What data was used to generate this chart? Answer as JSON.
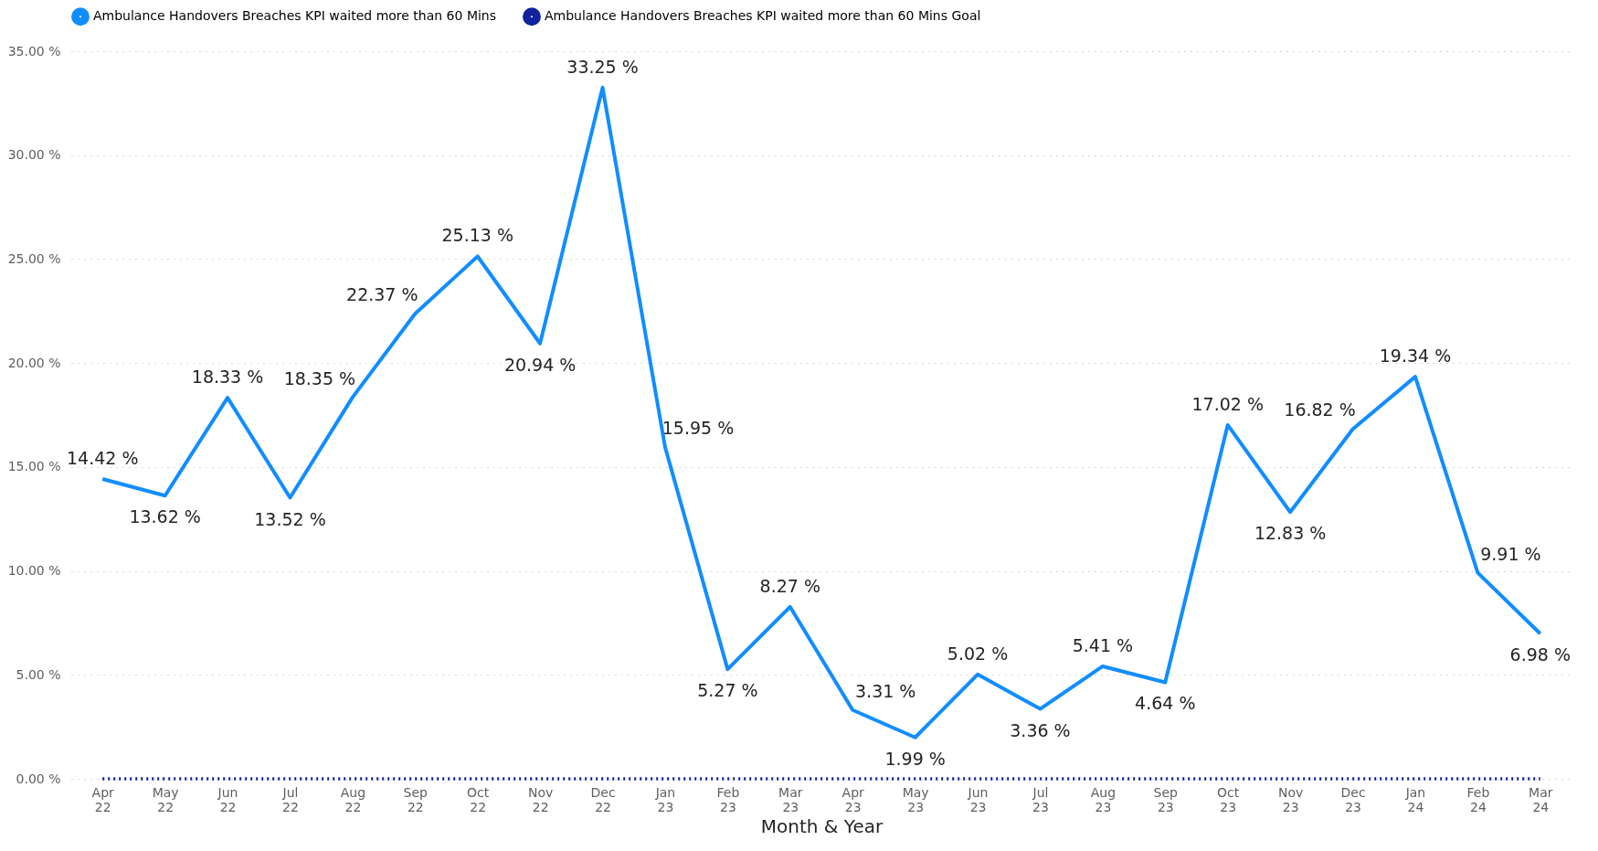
{
  "chart_data": {
    "type": "line",
    "xlabel": "Month & Year",
    "categories": [
      "Apr 22",
      "May 22",
      "Jun 22",
      "Jul 22",
      "Aug 22",
      "Sep 22",
      "Oct 22",
      "Nov 22",
      "Dec 22",
      "Jan 23",
      "Feb 23",
      "Mar 23",
      "Apr 23",
      "May 23",
      "Jun 23",
      "Jul 23",
      "Aug 23",
      "Sep 23",
      "Oct 23",
      "Nov 23",
      "Dec 23",
      "Jan 24",
      "Feb 24",
      "Mar 24"
    ],
    "series": [
      {
        "name": "Ambulance Handovers Breaches KPI waited more than 60 Mins",
        "color": "#118dff",
        "line_style": "solid",
        "values": [
          14.42,
          13.62,
          18.33,
          13.52,
          18.35,
          22.37,
          25.13,
          20.94,
          33.25,
          15.95,
          5.27,
          8.27,
          3.31,
          1.99,
          5.02,
          3.36,
          5.41,
          4.64,
          17.02,
          12.83,
          16.82,
          19.34,
          9.91,
          6.98
        ],
        "value_labels": [
          "14.42 %",
          "13.62 %",
          "18.33 %",
          "13.52 %",
          "18.35 %",
          "22.37 %",
          "25.13 %",
          "20.94 %",
          "33.25 %",
          "15.95 %",
          "5.27 %",
          "8.27 %",
          "3.31 %",
          "1.99 %",
          "5.02 %",
          "3.36 %",
          "5.41 %",
          "4.64 %",
          "17.02 %",
          "12.83 %",
          "16.82 %",
          "19.34 %",
          "9.91 %",
          "6.98 %"
        ]
      },
      {
        "name": "Ambulance Handovers Breaches KPI waited more than 60 Mins Goal",
        "color": "#12239e",
        "line_style": "dotted",
        "values": [
          0,
          0,
          0,
          0,
          0,
          0,
          0,
          0,
          0,
          0,
          0,
          0,
          0,
          0,
          0,
          0,
          0,
          0,
          0,
          0,
          0,
          0,
          0,
          0
        ]
      }
    ],
    "ylim": [
      0,
      35
    ],
    "yticks": [
      {
        "value": 0,
        "label": "0.00 %"
      },
      {
        "value": 5,
        "label": "5.00 %"
      },
      {
        "value": 10,
        "label": "10.00 %"
      },
      {
        "value": 15,
        "label": "15.00 %"
      },
      {
        "value": 20,
        "label": "20.00 %"
      },
      {
        "value": 25,
        "label": "25.00 %"
      },
      {
        "value": 30,
        "label": "30.00 %"
      },
      {
        "value": 35,
        "label": "35.00 %"
      }
    ],
    "grid": "y",
    "legend": "top left",
    "marker": "none"
  }
}
